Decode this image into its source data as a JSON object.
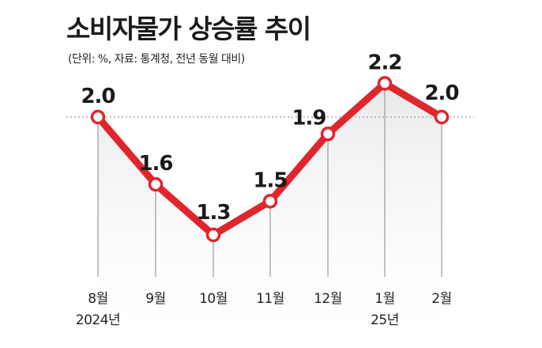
{
  "title": "소비자물가 상승률 추이",
  "subtitle": "(단위: %, 자료: 통계청, 전년 동월 대비)",
  "chart_data": {
    "type": "line",
    "title": "소비자물가 상승률 추이",
    "subtitle": "(단위: %, 자료: 통계청, 전년 동월 대비)",
    "categories": [
      "8월",
      "9월",
      "10월",
      "11월",
      "12월",
      "1월",
      "2월"
    ],
    "year_labels": [
      {
        "index": 0,
        "label": "2024년"
      },
      {
        "index": 5,
        "label": "25년"
      }
    ],
    "series": [
      {
        "values": [
          2.0,
          1.6,
          1.3,
          1.5,
          1.9,
          2.2,
          2.0
        ]
      }
    ],
    "data_labels": [
      "2.0",
      "1.6",
      "1.3",
      "1.5",
      "1.9",
      "2.2",
      "2.0"
    ],
    "reference_line": 2.0,
    "ylim": [
      1.0,
      2.4
    ],
    "grid": false,
    "colors": {
      "line": "#e0262c",
      "marker_fill": "#ffffff",
      "area": "#efeff1",
      "drop_line": "#9a9a9a",
      "reference": "#9a9a9a"
    }
  }
}
